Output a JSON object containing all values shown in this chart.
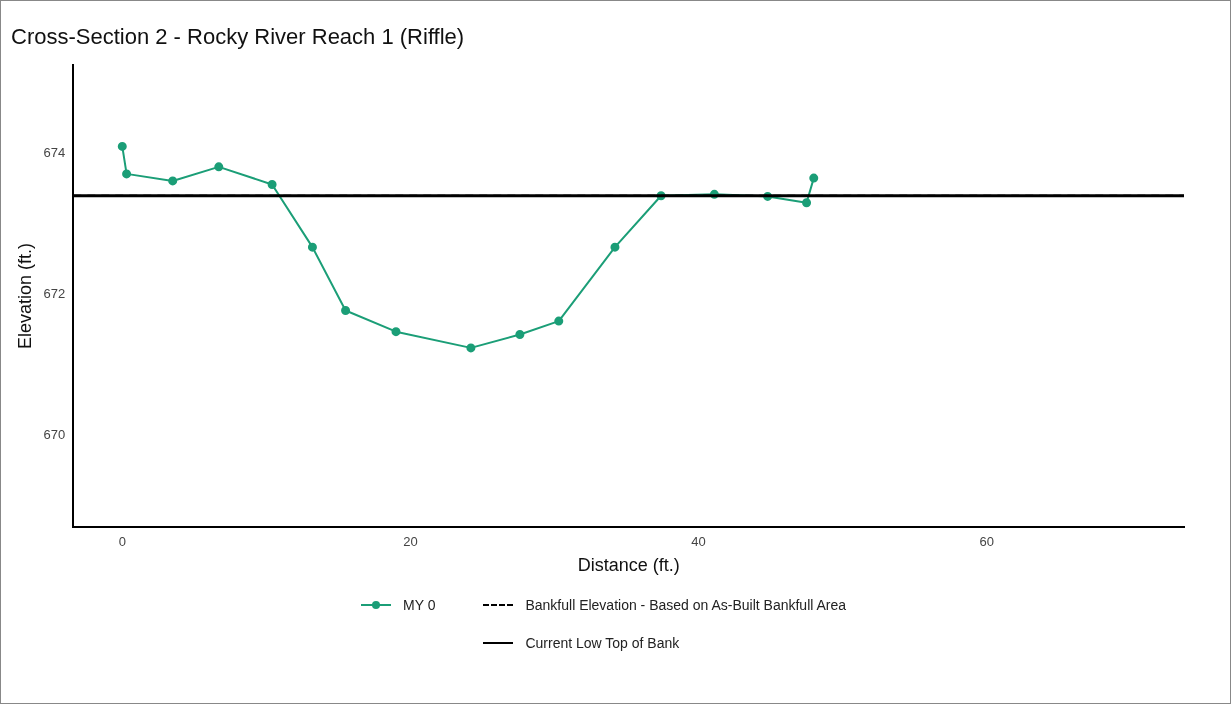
{
  "chart_data": {
    "type": "line",
    "title": "Cross-Section 2 - Rocky River Reach 1 (Riffle)",
    "xlabel": "Distance (ft.)",
    "ylabel": "Elevation (ft.)",
    "x": [
      0,
      0.3,
      3.5,
      6.7,
      10.4,
      13.2,
      15.5,
      19.0,
      24.2,
      27.6,
      30.3,
      34.2,
      37.4,
      41.1,
      44.8,
      47.5,
      48.0
    ],
    "series": [
      {
        "name": "MY 0",
        "color": "#1b9e77",
        "values": [
          674.1,
          673.71,
          673.61,
          673.81,
          673.56,
          672.67,
          671.77,
          671.47,
          671.24,
          671.43,
          671.62,
          672.67,
          673.4,
          673.42,
          673.39,
          673.3,
          673.65
        ]
      }
    ],
    "ref_lines": [
      {
        "axis": "y",
        "value": 673.4,
        "label": "Bankfull Elevation - Based on As-Built Bankfull Area",
        "color": "#000000",
        "line_style": "dashed"
      },
      {
        "axis": "y",
        "value": 673.4,
        "label": "Current Low Top of Bank",
        "color": "#000000",
        "line_style": "solid"
      }
    ],
    "xlim": [
      -3.4,
      73.7
    ],
    "xticks": [
      0,
      20,
      40,
      60
    ],
    "ylim": [
      668.7,
      675.25
    ],
    "yticks": [
      670,
      672,
      674
    ],
    "grid": false,
    "legend": "bottom",
    "marker": "circle",
    "line_style": "solid"
  }
}
